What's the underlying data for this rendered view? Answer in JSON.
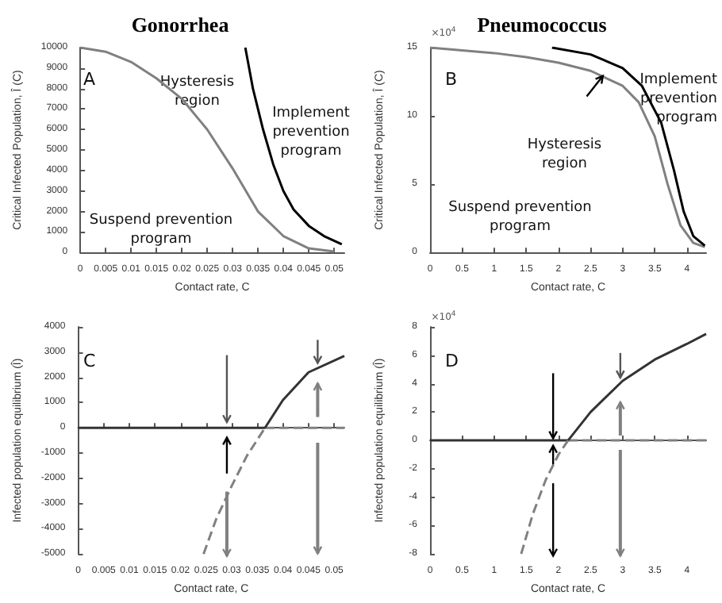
{
  "chart_data": [
    {
      "type": "line",
      "title": "Gonorrhea",
      "xlabel": "Contact rate, C",
      "ylabel": "Critical Infected Population, Î (C)",
      "xlim": [
        0,
        0.052
      ],
      "xticks": [
        0,
        0.005,
        0.01,
        0.015,
        0.02,
        0.025,
        0.03,
        0.035,
        0.04,
        0.045,
        0.05
      ],
      "ylim": [
        0,
        10000
      ],
      "yticks": [
        0,
        1000,
        2000,
        3000,
        4000,
        5000,
        6000,
        7000,
        8000,
        9000,
        10000
      ],
      "series": [
        {
          "color": "#808080",
          "x": [
            0,
            0.005,
            0.01,
            0.015,
            0.02,
            0.025,
            0.03,
            0.035,
            0.04,
            0.045,
            0.05
          ],
          "values": [
            10000,
            9800,
            9300,
            8500,
            7500,
            6000,
            4100,
            2000,
            800,
            200,
            50
          ]
        },
        {
          "color": "#000000",
          "x": [
            0.0325,
            0.034,
            0.036,
            0.038,
            0.04,
            0.042,
            0.045,
            0.048,
            0.0515
          ],
          "values": [
            10000,
            8000,
            6000,
            4300,
            3000,
            2100,
            1300,
            800,
            400
          ]
        }
      ],
      "annotations": [
        "A",
        "Hysteresis\nregion",
        "Implement\nprevention\nprogram",
        "Suspend prevention\nprogram"
      ]
    },
    {
      "type": "line",
      "title": "Pneumococcus",
      "xlabel": "Contact rate, C",
      "ylabel": "Critical Infected Population, Î (C)",
      "xlim": [
        0,
        4.3
      ],
      "xticks": [
        0,
        0.5,
        1,
        1.5,
        2,
        2.5,
        3,
        3.5,
        4
      ],
      "ylim": [
        0,
        15
      ],
      "yticks": [
        0,
        5,
        10,
        15
      ],
      "series": [
        {
          "color": "#808080",
          "x": [
            0,
            0.5,
            1,
            1.5,
            2,
            2.5,
            3,
            3.25,
            3.5,
            3.7,
            3.9,
            4.1,
            4.28
          ],
          "values": [
            15,
            14.8,
            14.6,
            14.3,
            13.9,
            13.3,
            12.2,
            11,
            8.5,
            5,
            2,
            0.7,
            0.4
          ]
        },
        {
          "color": "#000000",
          "x": [
            1.9,
            2.5,
            3,
            3.3,
            3.6,
            3.8,
            3.95,
            4.1,
            4.28
          ],
          "values": [
            15,
            14.5,
            13.5,
            12.2,
            9.5,
            6,
            3,
            1.2,
            0.5
          ]
        }
      ],
      "annotations": [
        "B",
        "×10$^{4}$",
        "Hysteresis\nregion",
        "Implement\nprevention\nprogram",
        "Suspend prevention\nprogram"
      ]
    },
    {
      "type": "line",
      "xlabel": "Contact rate, C",
      "ylabel": "Infected population equilibrium (Î)",
      "xlim": [
        0,
        0.052
      ],
      "xticks": [
        0,
        0.005,
        0.01,
        0.015,
        0.02,
        0.025,
        0.03,
        0.035,
        0.04,
        0.045,
        0.05
      ],
      "ylim": [
        -5000,
        4000
      ],
      "yticks": [
        -5000,
        -4000,
        -3000,
        -2000,
        -1000,
        0,
        1000,
        2000,
        3000,
        4000
      ],
      "series": [
        {
          "color": "#333333",
          "x": [
            0,
            0.0365
          ],
          "values": [
            0,
            0
          ]
        },
        {
          "color": "#808080",
          "line_style": "dashed",
          "x": [
            0.0365,
            0.052
          ],
          "values": [
            0,
            0
          ]
        },
        {
          "color": "#333333",
          "x": [
            0.0365,
            0.04,
            0.045,
            0.052
          ],
          "values": [
            0,
            1100,
            2200,
            2850
          ]
        },
        {
          "color": "#808080",
          "line_style": "dashed",
          "x": [
            0.0245,
            0.027,
            0.03,
            0.033,
            0.0365
          ],
          "values": [
            -5000,
            -3600,
            -2300,
            -1100,
            0
          ]
        }
      ],
      "annotations": [
        "C"
      ]
    },
    {
      "type": "line",
      "xlabel": "Contact rate, C",
      "ylabel": "Infected population equilibrium (Î)",
      "xlim": [
        0,
        4.3
      ],
      "xticks": [
        0,
        0.5,
        1,
        1.5,
        2,
        2.5,
        3,
        3.5,
        4
      ],
      "ylim": [
        -8,
        8
      ],
      "yticks": [
        -8,
        -6,
        -4,
        -2,
        0,
        2,
        4,
        6,
        8
      ],
      "series": [
        {
          "color": "#333333",
          "x": [
            0,
            2.15
          ],
          "values": [
            0,
            0
          ]
        },
        {
          "color": "#808080",
          "line_style": "dashed",
          "x": [
            2.15,
            4.3
          ],
          "values": [
            0,
            0
          ]
        },
        {
          "color": "#333333",
          "x": [
            2.15,
            2.5,
            3,
            3.5,
            4,
            4.3
          ],
          "values": [
            0,
            2,
            4.2,
            5.7,
            6.8,
            7.5
          ]
        },
        {
          "color": "#808080",
          "line_style": "dashed",
          "x": [
            1.42,
            1.6,
            1.8,
            2,
            2.15
          ],
          "values": [
            -8,
            -5.2,
            -2.8,
            -1,
            0
          ]
        }
      ],
      "annotations": [
        "D",
        "×10$^{4}$"
      ]
    }
  ]
}
